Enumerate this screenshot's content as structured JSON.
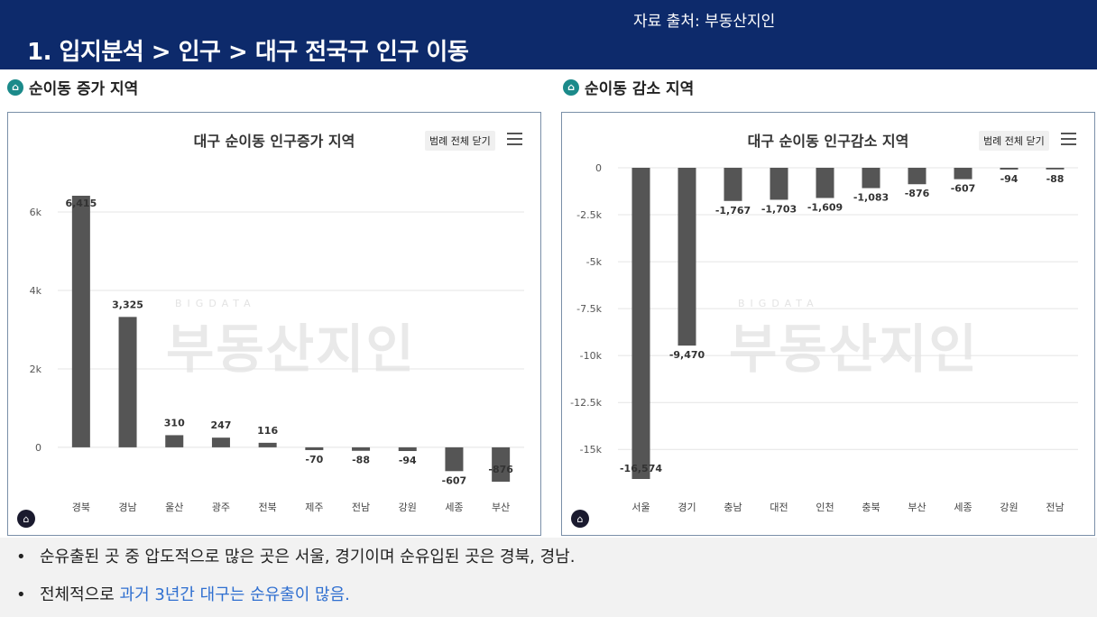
{
  "header": {
    "source": "자료 출처: 부동산지인",
    "title": "1. 입지분석 > 인구 > 대구 전국구 인구 이동"
  },
  "sections": {
    "left": {
      "icon": "home-badge-icon",
      "label": "순이동 증가 지역"
    },
    "right": {
      "icon": "home-badge-icon",
      "label": "순이동 감소 지역"
    }
  },
  "controls": {
    "legend_toggle": "범례 전체 닫기",
    "menu_icon": "hamburger-menu-icon"
  },
  "watermark": {
    "sub": "BIGDATA",
    "main": "부동산지인"
  },
  "colors": {
    "bar": "#555555",
    "header": "#0d2a6b",
    "highlight": "#2f6fd0"
  },
  "chart_data": [
    {
      "type": "bar",
      "title": "대구 순이동 인구증가 지역",
      "categories": [
        "경북",
        "경남",
        "울산",
        "광주",
        "전북",
        "제주",
        "전남",
        "강원",
        "세종",
        "부산"
      ],
      "values": [
        6415,
        3325,
        310,
        247,
        116,
        -70,
        -88,
        -94,
        -607,
        -876
      ],
      "labels": [
        "6,415",
        "3,325",
        "310",
        "247",
        "116",
        "-70",
        "-88",
        "-94",
        "-607",
        "-876"
      ],
      "yticks": [
        0,
        2000,
        4000,
        6000
      ],
      "ytick_labels": [
        "0",
        "2k",
        "4k",
        "6k"
      ],
      "ylim": [
        -876,
        6415
      ],
      "grid": true,
      "xlabel": "",
      "ylabel": ""
    },
    {
      "type": "bar",
      "title": "대구 순이동 인구감소 지역",
      "categories": [
        "서울",
        "경기",
        "충남",
        "대전",
        "인천",
        "충북",
        "부산",
        "세종",
        "강원",
        "전남"
      ],
      "values": [
        -16574,
        -9470,
        -1767,
        -1703,
        -1609,
        -1083,
        -876,
        -607,
        -94,
        -88
      ],
      "labels": [
        "-16,574",
        "-9,470",
        "-1,767",
        "-1,703",
        "-1,609",
        "-1,083",
        "-876",
        "-607",
        "-94",
        "-88"
      ],
      "yticks": [
        0,
        -2500,
        -5000,
        -7500,
        -10000,
        -12500,
        -15000
      ],
      "ytick_labels": [
        "0",
        "-2.5k",
        "-5k",
        "-7.5k",
        "-10k",
        "-12.5k",
        "-15k"
      ],
      "ylim": [
        -16574,
        0
      ],
      "grid": true,
      "xlabel": "",
      "ylabel": ""
    }
  ],
  "notes": [
    {
      "text": "순유출된 곳 중 압도적으로 많은 곳은 서울, 경기이며 순유입된 곳은 경북, 경남.",
      "highlight": ""
    },
    {
      "text": "전체적으로 ",
      "highlight": "과거 3년간 대구는 순유출이 많음."
    }
  ]
}
